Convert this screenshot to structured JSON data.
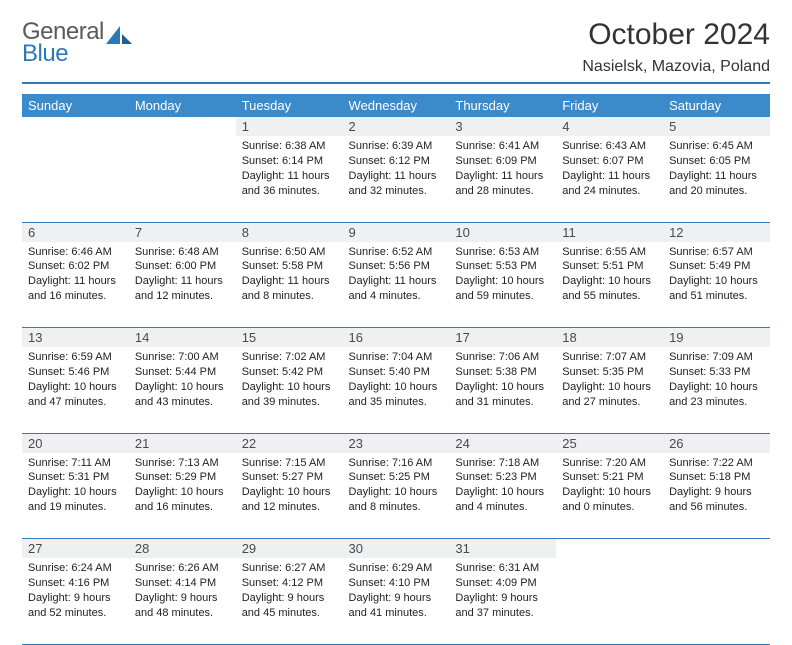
{
  "logo": {
    "word1": "General",
    "word2": "Blue"
  },
  "title": {
    "month": "October 2024",
    "location": "Nasielsk, Mazovia, Poland"
  },
  "colors": {
    "header_bg": "#3b8aca",
    "rule": "#357ab7",
    "daynum_bg": "#eef0f2",
    "text": "#222222"
  },
  "weekdays": [
    "Sunday",
    "Monday",
    "Tuesday",
    "Wednesday",
    "Thursday",
    "Friday",
    "Saturday"
  ],
  "weeks": [
    [
      null,
      null,
      {
        "n": "1",
        "rise": "Sunrise: 6:38 AM",
        "set": "Sunset: 6:14 PM",
        "dl": "Daylight: 11 hours and 36 minutes."
      },
      {
        "n": "2",
        "rise": "Sunrise: 6:39 AM",
        "set": "Sunset: 6:12 PM",
        "dl": "Daylight: 11 hours and 32 minutes."
      },
      {
        "n": "3",
        "rise": "Sunrise: 6:41 AM",
        "set": "Sunset: 6:09 PM",
        "dl": "Daylight: 11 hours and 28 minutes."
      },
      {
        "n": "4",
        "rise": "Sunrise: 6:43 AM",
        "set": "Sunset: 6:07 PM",
        "dl": "Daylight: 11 hours and 24 minutes."
      },
      {
        "n": "5",
        "rise": "Sunrise: 6:45 AM",
        "set": "Sunset: 6:05 PM",
        "dl": "Daylight: 11 hours and 20 minutes."
      }
    ],
    [
      {
        "n": "6",
        "rise": "Sunrise: 6:46 AM",
        "set": "Sunset: 6:02 PM",
        "dl": "Daylight: 11 hours and 16 minutes."
      },
      {
        "n": "7",
        "rise": "Sunrise: 6:48 AM",
        "set": "Sunset: 6:00 PM",
        "dl": "Daylight: 11 hours and 12 minutes."
      },
      {
        "n": "8",
        "rise": "Sunrise: 6:50 AM",
        "set": "Sunset: 5:58 PM",
        "dl": "Daylight: 11 hours and 8 minutes."
      },
      {
        "n": "9",
        "rise": "Sunrise: 6:52 AM",
        "set": "Sunset: 5:56 PM",
        "dl": "Daylight: 11 hours and 4 minutes."
      },
      {
        "n": "10",
        "rise": "Sunrise: 6:53 AM",
        "set": "Sunset: 5:53 PM",
        "dl": "Daylight: 10 hours and 59 minutes."
      },
      {
        "n": "11",
        "rise": "Sunrise: 6:55 AM",
        "set": "Sunset: 5:51 PM",
        "dl": "Daylight: 10 hours and 55 minutes."
      },
      {
        "n": "12",
        "rise": "Sunrise: 6:57 AM",
        "set": "Sunset: 5:49 PM",
        "dl": "Daylight: 10 hours and 51 minutes."
      }
    ],
    [
      {
        "n": "13",
        "rise": "Sunrise: 6:59 AM",
        "set": "Sunset: 5:46 PM",
        "dl": "Daylight: 10 hours and 47 minutes."
      },
      {
        "n": "14",
        "rise": "Sunrise: 7:00 AM",
        "set": "Sunset: 5:44 PM",
        "dl": "Daylight: 10 hours and 43 minutes."
      },
      {
        "n": "15",
        "rise": "Sunrise: 7:02 AM",
        "set": "Sunset: 5:42 PM",
        "dl": "Daylight: 10 hours and 39 minutes."
      },
      {
        "n": "16",
        "rise": "Sunrise: 7:04 AM",
        "set": "Sunset: 5:40 PM",
        "dl": "Daylight: 10 hours and 35 minutes."
      },
      {
        "n": "17",
        "rise": "Sunrise: 7:06 AM",
        "set": "Sunset: 5:38 PM",
        "dl": "Daylight: 10 hours and 31 minutes."
      },
      {
        "n": "18",
        "rise": "Sunrise: 7:07 AM",
        "set": "Sunset: 5:35 PM",
        "dl": "Daylight: 10 hours and 27 minutes."
      },
      {
        "n": "19",
        "rise": "Sunrise: 7:09 AM",
        "set": "Sunset: 5:33 PM",
        "dl": "Daylight: 10 hours and 23 minutes."
      }
    ],
    [
      {
        "n": "20",
        "rise": "Sunrise: 7:11 AM",
        "set": "Sunset: 5:31 PM",
        "dl": "Daylight: 10 hours and 19 minutes."
      },
      {
        "n": "21",
        "rise": "Sunrise: 7:13 AM",
        "set": "Sunset: 5:29 PM",
        "dl": "Daylight: 10 hours and 16 minutes."
      },
      {
        "n": "22",
        "rise": "Sunrise: 7:15 AM",
        "set": "Sunset: 5:27 PM",
        "dl": "Daylight: 10 hours and 12 minutes."
      },
      {
        "n": "23",
        "rise": "Sunrise: 7:16 AM",
        "set": "Sunset: 5:25 PM",
        "dl": "Daylight: 10 hours and 8 minutes."
      },
      {
        "n": "24",
        "rise": "Sunrise: 7:18 AM",
        "set": "Sunset: 5:23 PM",
        "dl": "Daylight: 10 hours and 4 minutes."
      },
      {
        "n": "25",
        "rise": "Sunrise: 7:20 AM",
        "set": "Sunset: 5:21 PM",
        "dl": "Daylight: 10 hours and 0 minutes."
      },
      {
        "n": "26",
        "rise": "Sunrise: 7:22 AM",
        "set": "Sunset: 5:18 PM",
        "dl": "Daylight: 9 hours and 56 minutes."
      }
    ],
    [
      {
        "n": "27",
        "rise": "Sunrise: 6:24 AM",
        "set": "Sunset: 4:16 PM",
        "dl": "Daylight: 9 hours and 52 minutes."
      },
      {
        "n": "28",
        "rise": "Sunrise: 6:26 AM",
        "set": "Sunset: 4:14 PM",
        "dl": "Daylight: 9 hours and 48 minutes."
      },
      {
        "n": "29",
        "rise": "Sunrise: 6:27 AM",
        "set": "Sunset: 4:12 PM",
        "dl": "Daylight: 9 hours and 45 minutes."
      },
      {
        "n": "30",
        "rise": "Sunrise: 6:29 AM",
        "set": "Sunset: 4:10 PM",
        "dl": "Daylight: 9 hours and 41 minutes."
      },
      {
        "n": "31",
        "rise": "Sunrise: 6:31 AM",
        "set": "Sunset: 4:09 PM",
        "dl": "Daylight: 9 hours and 37 minutes."
      },
      null,
      null
    ]
  ]
}
